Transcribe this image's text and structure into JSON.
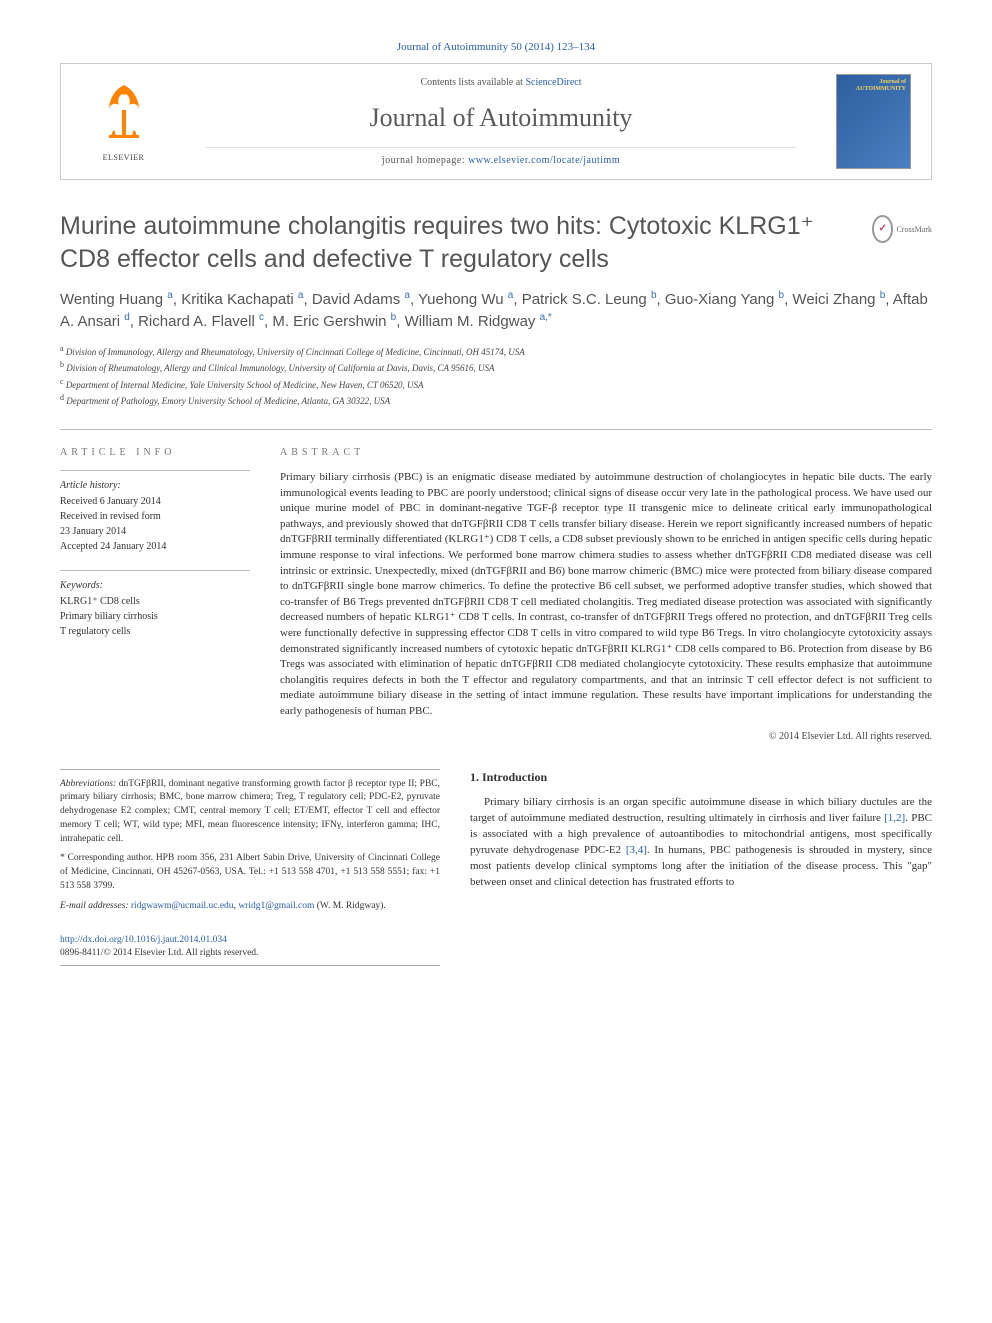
{
  "colors": {
    "link": "#2a5da8",
    "elsevier_orange": "#ff8200",
    "title_gray": "#555555",
    "text": "#333333",
    "border": "#cccccc"
  },
  "topbar": "Journal of Autoimmunity 50 (2014) 123–134",
  "header": {
    "elsevier": "ELSEVIER",
    "contents_prefix": "Contents lists available at ",
    "contents_link": "ScienceDirect",
    "journal_name": "Journal of Autoimmunity",
    "homepage_prefix": "journal homepage: ",
    "homepage_url": "www.elsevier.com/locate/jautimm",
    "cover_label": "Journal of\nAUTOIMMUNITY"
  },
  "title": "Murine autoimmune cholangitis requires two hits: Cytotoxic KLRG1⁺ CD8 effector cells and defective T regulatory cells",
  "crossmark": "CrossMark",
  "authors_html": "Wenting Huang <sup>a</sup>, Kritika Kachapati <sup>a</sup>, David Adams <sup>a</sup>, Yuehong Wu <sup>a</sup>, Patrick S.C. Leung <sup>b</sup>, Guo-Xiang Yang <sup>b</sup>, Weici Zhang <sup>b</sup>, Aftab A. Ansari <sup>d</sup>, Richard A. Flavell <sup>c</sup>, M. Eric Gershwin <sup>b</sup>, William M. Ridgway <sup>a,*</sup>",
  "affiliations": [
    {
      "key": "a",
      "text": "Division of Immunology, Allergy and Rheumatology, University of Cincinnati College of Medicine, Cincinnati, OH 45174, USA"
    },
    {
      "key": "b",
      "text": "Division of Rheumatology, Allergy and Clinical Immunology, University of California at Davis, Davis, CA 95616, USA"
    },
    {
      "key": "c",
      "text": "Department of Internal Medicine, Yale University School of Medicine, New Haven, CT 06520, USA"
    },
    {
      "key": "d",
      "text": "Department of Pathology, Emory University School of Medicine, Atlanta, GA 30322, USA"
    }
  ],
  "info": {
    "heading": "ARTICLE INFO",
    "history_label": "Article history:",
    "history": [
      "Received 6 January 2014",
      "Received in revised form",
      "23 January 2014",
      "Accepted 24 January 2014"
    ],
    "keywords_label": "Keywords:",
    "keywords": [
      "KLRG1⁺ CD8 cells",
      "Primary biliary cirrhosis",
      "T regulatory cells"
    ]
  },
  "abstract": {
    "heading": "ABSTRACT",
    "text": "Primary biliary cirrhosis (PBC) is an enigmatic disease mediated by autoimmune destruction of cholangiocytes in hepatic bile ducts. The early immunological events leading to PBC are poorly understood; clinical signs of disease occur very late in the pathological process. We have used our unique murine model of PBC in dominant-negative TGF-β receptor type II transgenic mice to delineate critical early immunopathological pathways, and previously showed that dnTGFβRII CD8 T cells transfer biliary disease. Herein we report significantly increased numbers of hepatic dnTGFβRII terminally differentiated (KLRG1⁺) CD8 T cells, a CD8 subset previously shown to be enriched in antigen specific cells during hepatic immune response to viral infections. We performed bone marrow chimera studies to assess whether dnTGFβRII CD8 mediated disease was cell intrinsic or extrinsic. Unexpectedly, mixed (dnTGFβRII and B6) bone marrow chimeric (BMC) mice were protected from biliary disease compared to dnTGFβRII single bone marrow chimerics. To define the protective B6 cell subset, we performed adoptive transfer studies, which showed that co-transfer of B6 Tregs prevented dnTGFβRII CD8 T cell mediated cholangitis. Treg mediated disease protection was associated with significantly decreased numbers of hepatic KLRG1⁺ CD8 T cells. In contrast, co-transfer of dnTGFβRII Tregs offered no protection, and dnTGFβRII Treg cells were functionally defective in suppressing effector CD8 T cells in vitro compared to wild type B6 Tregs. In vitro cholangiocyte cytotoxicity assays demonstrated significantly increased numbers of cytotoxic hepatic dnTGFβRII KLRG1⁺ CD8 cells compared to B6. Protection from disease by B6 Tregs was associated with elimination of hepatic dnTGFβRII CD8 mediated cholangiocyte cytotoxicity. These results emphasize that autoimmune cholangitis requires defects in both the T effector and regulatory compartments, and that an intrinsic T cell effector defect is not sufficient to mediate autoimmune biliary disease in the setting of intact immune regulation. These results have important implications for understanding the early pathogenesis of human PBC.",
    "copyright": "© 2014 Elsevier Ltd. All rights reserved."
  },
  "footnotes": {
    "abbrev_label": "Abbreviations:",
    "abbrev": "dnTGFβRII, dominant negative transforming growth factor β receptor type II; PBC, primary biliary cirrhosis; BMC, bone marrow chimera; Treg, T regulatory cell; PDC-E2, pyruvate dehydrogenase E2 complex; CMT, central memory T cell; ET/EMT, effector T cell and effector memory T cell; WT, wild type; MFI, mean fluorescence intensity; IFNγ, interferon gamma; IHC, intrahepatic cell.",
    "corr_label": " * Corresponding author.",
    "corr": "HPB room 356, 231 Albert Sabin Drive, University of Cincinnati College of Medicine, Cincinnati, OH 45267-0563, USA. Tel.: +1 513 558 4701, +1 513 558 5551; fax: +1 513 558 3799.",
    "email_label": "E-mail addresses:",
    "email1": "ridgwawm@ucmail.uc.edu",
    "email2": "wridg1@gmail.com",
    "email_suffix": "(W. M. Ridgway).",
    "doi": "http://dx.doi.org/10.1016/j.jaut.2014.01.034",
    "issn": "0896-8411/© 2014 Elsevier Ltd. All rights reserved."
  },
  "intro": {
    "heading": "1. Introduction",
    "text": "Primary biliary cirrhosis is an organ specific autoimmune disease in which biliary ductules are the target of autoimmune mediated destruction, resulting ultimately in cirrhosis and liver failure [1,2]. PBC is associated with a high prevalence of autoantibodies to mitochondrial antigens, most specifically pyruvate dehydrogenase PDC-E2 [3,4]. In humans, PBC pathogenesis is shrouded in mystery, since most patients develop clinical symptoms long after the initiation of the disease process. This \"gap\" between onset and clinical detection has frustrated efforts to",
    "refs": {
      "r12": "[1,2]",
      "r34": "[3,4]"
    }
  }
}
